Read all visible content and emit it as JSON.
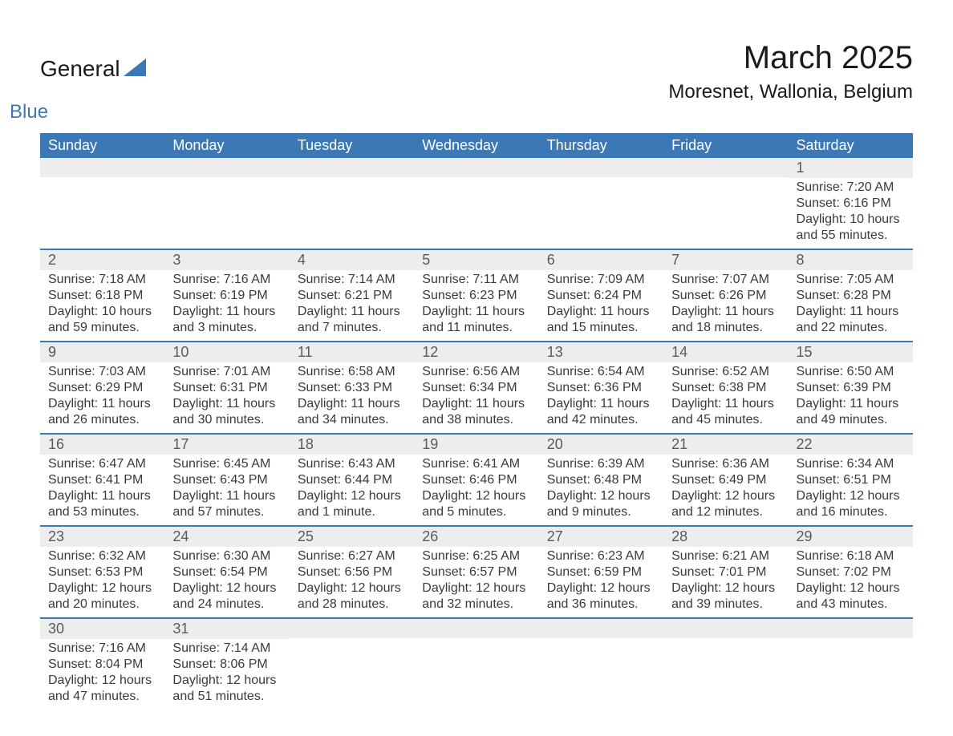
{
  "logo": {
    "word1": "General",
    "word2": "Blue",
    "fill": "#3b78b5"
  },
  "title": "March 2025",
  "location": "Moresnet, Wallonia, Belgium",
  "colors": {
    "header_bg": "#3b78b5",
    "header_text": "#ffffff",
    "daynum_bg": "#ededed",
    "row_border": "#3b78b5",
    "body_text": "#3a3a3a"
  },
  "day_headers": [
    "Sunday",
    "Monday",
    "Tuesday",
    "Wednesday",
    "Thursday",
    "Friday",
    "Saturday"
  ],
  "weeks": [
    [
      null,
      null,
      null,
      null,
      null,
      null,
      {
        "n": "1",
        "sr": "Sunrise: 7:20 AM",
        "ss": "Sunset: 6:16 PM",
        "d1": "Daylight: 10 hours",
        "d2": "and 55 minutes."
      }
    ],
    [
      {
        "n": "2",
        "sr": "Sunrise: 7:18 AM",
        "ss": "Sunset: 6:18 PM",
        "d1": "Daylight: 10 hours",
        "d2": "and 59 minutes."
      },
      {
        "n": "3",
        "sr": "Sunrise: 7:16 AM",
        "ss": "Sunset: 6:19 PM",
        "d1": "Daylight: 11 hours",
        "d2": "and 3 minutes."
      },
      {
        "n": "4",
        "sr": "Sunrise: 7:14 AM",
        "ss": "Sunset: 6:21 PM",
        "d1": "Daylight: 11 hours",
        "d2": "and 7 minutes."
      },
      {
        "n": "5",
        "sr": "Sunrise: 7:11 AM",
        "ss": "Sunset: 6:23 PM",
        "d1": "Daylight: 11 hours",
        "d2": "and 11 minutes."
      },
      {
        "n": "6",
        "sr": "Sunrise: 7:09 AM",
        "ss": "Sunset: 6:24 PM",
        "d1": "Daylight: 11 hours",
        "d2": "and 15 minutes."
      },
      {
        "n": "7",
        "sr": "Sunrise: 7:07 AM",
        "ss": "Sunset: 6:26 PM",
        "d1": "Daylight: 11 hours",
        "d2": "and 18 minutes."
      },
      {
        "n": "8",
        "sr": "Sunrise: 7:05 AM",
        "ss": "Sunset: 6:28 PM",
        "d1": "Daylight: 11 hours",
        "d2": "and 22 minutes."
      }
    ],
    [
      {
        "n": "9",
        "sr": "Sunrise: 7:03 AM",
        "ss": "Sunset: 6:29 PM",
        "d1": "Daylight: 11 hours",
        "d2": "and 26 minutes."
      },
      {
        "n": "10",
        "sr": "Sunrise: 7:01 AM",
        "ss": "Sunset: 6:31 PM",
        "d1": "Daylight: 11 hours",
        "d2": "and 30 minutes."
      },
      {
        "n": "11",
        "sr": "Sunrise: 6:58 AM",
        "ss": "Sunset: 6:33 PM",
        "d1": "Daylight: 11 hours",
        "d2": "and 34 minutes."
      },
      {
        "n": "12",
        "sr": "Sunrise: 6:56 AM",
        "ss": "Sunset: 6:34 PM",
        "d1": "Daylight: 11 hours",
        "d2": "and 38 minutes."
      },
      {
        "n": "13",
        "sr": "Sunrise: 6:54 AM",
        "ss": "Sunset: 6:36 PM",
        "d1": "Daylight: 11 hours",
        "d2": "and 42 minutes."
      },
      {
        "n": "14",
        "sr": "Sunrise: 6:52 AM",
        "ss": "Sunset: 6:38 PM",
        "d1": "Daylight: 11 hours",
        "d2": "and 45 minutes."
      },
      {
        "n": "15",
        "sr": "Sunrise: 6:50 AM",
        "ss": "Sunset: 6:39 PM",
        "d1": "Daylight: 11 hours",
        "d2": "and 49 minutes."
      }
    ],
    [
      {
        "n": "16",
        "sr": "Sunrise: 6:47 AM",
        "ss": "Sunset: 6:41 PM",
        "d1": "Daylight: 11 hours",
        "d2": "and 53 minutes."
      },
      {
        "n": "17",
        "sr": "Sunrise: 6:45 AM",
        "ss": "Sunset: 6:43 PM",
        "d1": "Daylight: 11 hours",
        "d2": "and 57 minutes."
      },
      {
        "n": "18",
        "sr": "Sunrise: 6:43 AM",
        "ss": "Sunset: 6:44 PM",
        "d1": "Daylight: 12 hours",
        "d2": "and 1 minute."
      },
      {
        "n": "19",
        "sr": "Sunrise: 6:41 AM",
        "ss": "Sunset: 6:46 PM",
        "d1": "Daylight: 12 hours",
        "d2": "and 5 minutes."
      },
      {
        "n": "20",
        "sr": "Sunrise: 6:39 AM",
        "ss": "Sunset: 6:48 PM",
        "d1": "Daylight: 12 hours",
        "d2": "and 9 minutes."
      },
      {
        "n": "21",
        "sr": "Sunrise: 6:36 AM",
        "ss": "Sunset: 6:49 PM",
        "d1": "Daylight: 12 hours",
        "d2": "and 12 minutes."
      },
      {
        "n": "22",
        "sr": "Sunrise: 6:34 AM",
        "ss": "Sunset: 6:51 PM",
        "d1": "Daylight: 12 hours",
        "d2": "and 16 minutes."
      }
    ],
    [
      {
        "n": "23",
        "sr": "Sunrise: 6:32 AM",
        "ss": "Sunset: 6:53 PM",
        "d1": "Daylight: 12 hours",
        "d2": "and 20 minutes."
      },
      {
        "n": "24",
        "sr": "Sunrise: 6:30 AM",
        "ss": "Sunset: 6:54 PM",
        "d1": "Daylight: 12 hours",
        "d2": "and 24 minutes."
      },
      {
        "n": "25",
        "sr": "Sunrise: 6:27 AM",
        "ss": "Sunset: 6:56 PM",
        "d1": "Daylight: 12 hours",
        "d2": "and 28 minutes."
      },
      {
        "n": "26",
        "sr": "Sunrise: 6:25 AM",
        "ss": "Sunset: 6:57 PM",
        "d1": "Daylight: 12 hours",
        "d2": "and 32 minutes."
      },
      {
        "n": "27",
        "sr": "Sunrise: 6:23 AM",
        "ss": "Sunset: 6:59 PM",
        "d1": "Daylight: 12 hours",
        "d2": "and 36 minutes."
      },
      {
        "n": "28",
        "sr": "Sunrise: 6:21 AM",
        "ss": "Sunset: 7:01 PM",
        "d1": "Daylight: 12 hours",
        "d2": "and 39 minutes."
      },
      {
        "n": "29",
        "sr": "Sunrise: 6:18 AM",
        "ss": "Sunset: 7:02 PM",
        "d1": "Daylight: 12 hours",
        "d2": "and 43 minutes."
      }
    ],
    [
      {
        "n": "30",
        "sr": "Sunrise: 7:16 AM",
        "ss": "Sunset: 8:04 PM",
        "d1": "Daylight: 12 hours",
        "d2": "and 47 minutes."
      },
      {
        "n": "31",
        "sr": "Sunrise: 7:14 AM",
        "ss": "Sunset: 8:06 PM",
        "d1": "Daylight: 12 hours",
        "d2": "and 51 minutes."
      },
      null,
      null,
      null,
      null,
      null
    ]
  ]
}
